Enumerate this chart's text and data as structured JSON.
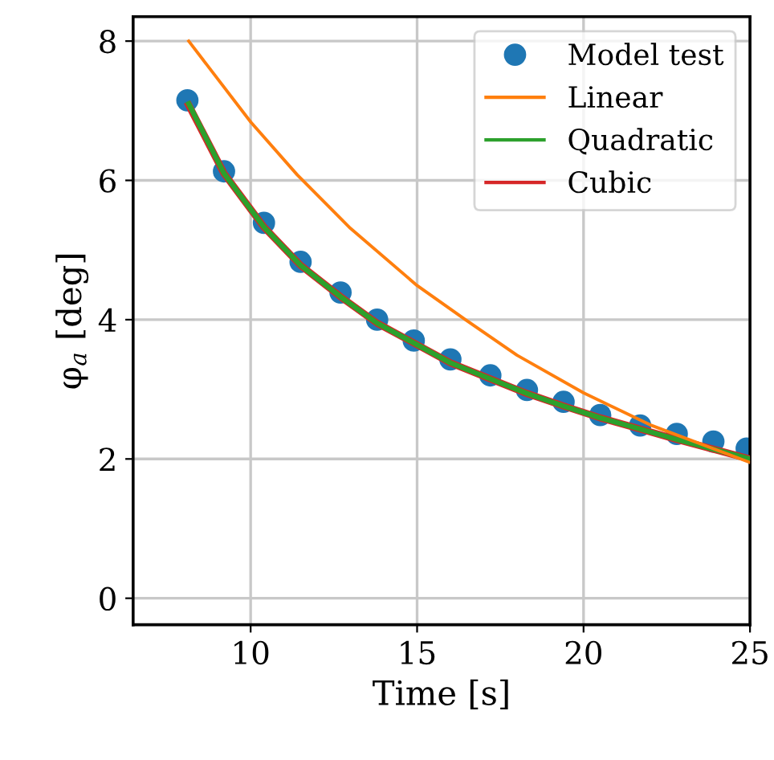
{
  "chart_data": {
    "type": "line",
    "xlabel": "Time [s]",
    "ylabel": "φ$_{a}$ [deg]",
    "xlim": [
      6.47,
      25
    ],
    "ylim": [
      -0.38,
      8.35
    ],
    "xticks": [
      10,
      15,
      20,
      25
    ],
    "yticks": [
      0,
      2,
      4,
      6,
      8
    ],
    "grid": true,
    "legend": "top right",
    "series": [
      {
        "name": "Model test",
        "type": "scatter",
        "marker": "circle",
        "color": "#1f77b4",
        "x": [
          8.1,
          9.2,
          10.4,
          11.5,
          12.7,
          13.8,
          14.9,
          16.0,
          17.2,
          18.3,
          19.4,
          20.5,
          21.7,
          22.8,
          23.9,
          24.9
        ],
        "values": [
          7.15,
          6.13,
          5.39,
          4.83,
          4.39,
          4.0,
          3.7,
          3.43,
          3.2,
          2.99,
          2.82,
          2.63,
          2.48,
          2.36,
          2.25,
          2.15
        ]
      },
      {
        "name": "Linear",
        "type": "line",
        "color": "#ff7f0e",
        "x": [
          8.14,
          10,
          11.4,
          13,
          15,
          16.45,
          18,
          20,
          22,
          25
        ],
        "values": [
          8.0,
          6.84,
          6.08,
          5.31,
          4.49,
          4.0,
          3.49,
          2.95,
          2.49,
          1.95
        ]
      },
      {
        "name": "Quadratic",
        "type": "line",
        "color": "#2ca02c",
        "x": [
          8.14,
          9.2,
          10.4,
          11.5,
          12.7,
          13.8,
          15,
          16,
          17.2,
          18.3,
          19.4,
          20.5,
          21.7,
          22.8,
          23.9,
          25
        ],
        "values": [
          7.1,
          6.1,
          5.33,
          4.78,
          4.33,
          3.95,
          3.64,
          3.38,
          3.15,
          2.94,
          2.76,
          2.59,
          2.43,
          2.28,
          2.14,
          2.0
        ]
      },
      {
        "name": "Cubic",
        "type": "line",
        "color": "#d62728",
        "x": [
          8.14,
          9.2,
          10.4,
          11.5,
          12.7,
          13.8,
          15,
          16,
          17.2,
          18.3,
          19.4,
          20.5,
          21.7,
          22.8,
          23.9,
          25
        ],
        "values": [
          7.08,
          6.1,
          5.33,
          4.78,
          4.33,
          3.95,
          3.64,
          3.38,
          3.15,
          2.94,
          2.76,
          2.59,
          2.43,
          2.28,
          2.14,
          2.0
        ]
      }
    ]
  }
}
